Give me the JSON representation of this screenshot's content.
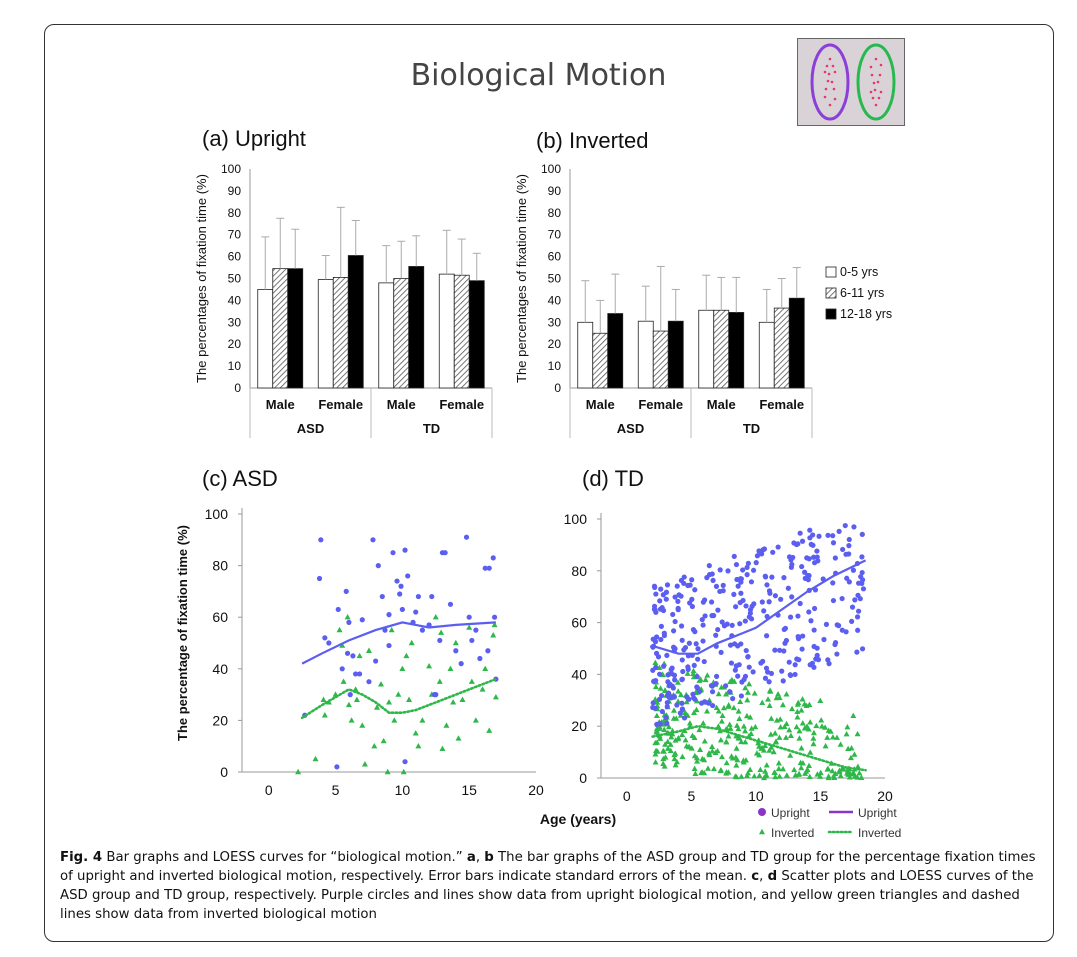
{
  "title": "Biological Motion",
  "panels": {
    "a": "(a) Upright",
    "b": "(b) Inverted",
    "c": "(c) ASD",
    "d": "(d) TD"
  },
  "legend": {
    "age_groups": [
      "0-5 yrs",
      "6-11 yrs",
      "12-18 yrs"
    ],
    "upright_points": "Upright",
    "upright_line": "Upright",
    "inverted_points": "Inverted",
    "inverted_line": "Inverted"
  },
  "colors": {
    "upright": "#5b5ef0",
    "inverted": "#2fb84a",
    "frame": "#333333"
  },
  "caption": {
    "fig_label": "Fig. 4",
    "text_1": " Bar graphs and LOESS curves for “biological motion.” ",
    "a": "a",
    "sep": ", ",
    "b": "b",
    "text_2": " The bar graphs of the ASD group and TD group for the percentage fixation times of upright and inverted biological motion, respectively. Error bars indicate standard errors of the mean. ",
    "c": "c",
    "d": "d",
    "text_3": " Scatter plots and LOESS curves of the ASD group and TD group, respectively. Purple circles and lines show data from upright biological motion, and yellow green triangles and dashed lines show data from inverted biological motion"
  },
  "chart_data": [
    {
      "type": "bar",
      "id": "a",
      "title": "(a) Upright",
      "ylabel": "The percentages of fixation time (%)",
      "ylim": [
        0,
        100
      ],
      "yticks": [
        0,
        10,
        20,
        30,
        40,
        50,
        60,
        70,
        80,
        90,
        100
      ],
      "groups": [
        "ASD",
        "TD"
      ],
      "categories": [
        "Male",
        "Female",
        "Male",
        "Female"
      ],
      "series": [
        {
          "name": "0-5 yrs",
          "values": [
            45,
            49.5,
            48,
            52
          ],
          "errors": [
            24,
            11,
            17,
            20
          ]
        },
        {
          "name": "6-11 yrs",
          "values": [
            54.5,
            50.5,
            50,
            51.5
          ],
          "errors": [
            23,
            32,
            17,
            16.5
          ]
        },
        {
          "name": "12-18 yrs",
          "values": [
            54.5,
            60.5,
            55.5,
            49
          ],
          "errors": [
            18,
            16,
            14,
            12.5
          ]
        }
      ]
    },
    {
      "type": "bar",
      "id": "b",
      "title": "(b) Inverted",
      "ylabel": "The percentages of fixation time (%)",
      "ylim": [
        0,
        100
      ],
      "yticks": [
        0,
        10,
        20,
        30,
        40,
        50,
        60,
        70,
        80,
        90,
        100
      ],
      "groups": [
        "ASD",
        "TD"
      ],
      "categories": [
        "Male",
        "Female",
        "Male",
        "Female"
      ],
      "series": [
        {
          "name": "0-5 yrs",
          "values": [
            30,
            30.5,
            35.5,
            30
          ],
          "errors": [
            19,
            16,
            16,
            15
          ]
        },
        {
          "name": "6-11 yrs",
          "values": [
            25,
            26,
            35.5,
            36.5
          ],
          "errors": [
            15,
            29.5,
            15,
            13.5
          ]
        },
        {
          "name": "12-18 yrs",
          "values": [
            34,
            30.5,
            34.5,
            41
          ],
          "errors": [
            18,
            14.5,
            16,
            14
          ]
        }
      ]
    },
    {
      "type": "scatter",
      "id": "c",
      "title": "(c) ASD",
      "ylabel": "The percentage of fixation time (%)",
      "xlim": [
        -2,
        20
      ],
      "ylim": [
        0,
        100
      ],
      "xticks": [
        0,
        5,
        10,
        15,
        20
      ],
      "yticks": [
        0,
        20,
        40,
        60,
        80,
        100
      ],
      "series": [
        {
          "name": "Upright",
          "marker": "circle",
          "points": [
            [
              3.9,
              90
            ],
            [
              3.8,
              75
            ],
            [
              4.2,
              52
            ],
            [
              4.5,
              50
            ],
            [
              5.2,
              63
            ],
            [
              5.8,
              70
            ],
            [
              6,
              58
            ],
            [
              6.3,
              45
            ],
            [
              5.5,
              40
            ],
            [
              6.5,
              38
            ],
            [
              5.9,
              46
            ],
            [
              6.1,
              30
            ],
            [
              7,
              59
            ],
            [
              7.8,
              90
            ],
            [
              8.2,
              80
            ],
            [
              8.5,
              68
            ],
            [
              8.7,
              55
            ],
            [
              9,
              61
            ],
            [
              9.3,
              85
            ],
            [
              9.6,
              74
            ],
            [
              9.8,
              69
            ],
            [
              10,
              63
            ],
            [
              10.2,
              86
            ],
            [
              10.4,
              76
            ],
            [
              10.8,
              58
            ],
            [
              11,
              62
            ],
            [
              11.5,
              55
            ],
            [
              12,
              57
            ],
            [
              12.4,
              30
            ],
            [
              12.8,
              51
            ],
            [
              13,
              85
            ],
            [
              13.2,
              85
            ],
            [
              13.6,
              65
            ],
            [
              14,
              47
            ],
            [
              14.4,
              42
            ],
            [
              14.8,
              91
            ],
            [
              15,
              60
            ],
            [
              15.5,
              55
            ],
            [
              15.8,
              44
            ],
            [
              16.2,
              79
            ],
            [
              16.5,
              79
            ],
            [
              16.8,
              83
            ],
            [
              17,
              36
            ],
            [
              16.4,
              47
            ],
            [
              12.5,
              30
            ],
            [
              7.5,
              35
            ],
            [
              6.8,
              38
            ],
            [
              8,
              43
            ],
            [
              9,
              49
            ],
            [
              9.9,
              72
            ],
            [
              2.7,
              22
            ],
            [
              5.1,
              2
            ],
            [
              10.2,
              4
            ],
            [
              11.2,
              68
            ],
            [
              12.2,
              68
            ],
            [
              15.2,
              51
            ],
            [
              16.9,
              60
            ]
          ]
        },
        {
          "name": "Inverted",
          "marker": "triangle",
          "points": [
            [
              2.2,
              0
            ],
            [
              3.5,
              5
            ],
            [
              4.1,
              28
            ],
            [
              4.5,
              27
            ],
            [
              4.2,
              22
            ],
            [
              5,
              30
            ],
            [
              5.3,
              55
            ],
            [
              5.5,
              49
            ],
            [
              5.6,
              35
            ],
            [
              5.9,
              60
            ],
            [
              6.2,
              20
            ],
            [
              6.5,
              32
            ],
            [
              6.6,
              28
            ],
            [
              6.8,
              45
            ],
            [
              7,
              18
            ],
            [
              7.5,
              47
            ],
            [
              7.9,
              10
            ],
            [
              8.1,
              25
            ],
            [
              8.4,
              34
            ],
            [
              8.6,
              12
            ],
            [
              8.9,
              0
            ],
            [
              9.2,
              55
            ],
            [
              9.4,
              20
            ],
            [
              9.7,
              30
            ],
            [
              10,
              40
            ],
            [
              10.3,
              45
            ],
            [
              10.5,
              28
            ],
            [
              10.7,
              50
            ],
            [
              11,
              15
            ],
            [
              11.2,
              10
            ],
            [
              11.5,
              20
            ],
            [
              12,
              41
            ],
            [
              12.2,
              30
            ],
            [
              12.5,
              60
            ],
            [
              12.8,
              35
            ],
            [
              13,
              9
            ],
            [
              13.3,
              18
            ],
            [
              13.6,
              40
            ],
            [
              13.8,
              27
            ],
            [
              14,
              50
            ],
            [
              14.5,
              28
            ],
            [
              15,
              56
            ],
            [
              15.2,
              35
            ],
            [
              15.5,
              20
            ],
            [
              16,
              32
            ],
            [
              16.2,
              40
            ],
            [
              16.5,
              16
            ],
            [
              16.8,
              53
            ],
            [
              17,
              29
            ],
            [
              16.9,
              57
            ],
            [
              7.2,
              3
            ],
            [
              10.1,
              0
            ],
            [
              6,
              26
            ],
            [
              9,
              27
            ],
            [
              12.9,
              54
            ],
            [
              14.2,
              13
            ]
          ]
        }
      ],
      "lines": [
        {
          "name": "Upright",
          "style": "solid",
          "points": [
            [
              2.5,
              42
            ],
            [
              4,
              46
            ],
            [
              6,
              51
            ],
            [
              8,
              55
            ],
            [
              10,
              58
            ],
            [
              11,
              57
            ],
            [
              12,
              56
            ],
            [
              14,
              57
            ],
            [
              17,
              58
            ]
          ]
        },
        {
          "name": "Inverted",
          "style": "dotted",
          "points": [
            [
              2.5,
              21
            ],
            [
              4,
              26
            ],
            [
              5,
              29
            ],
            [
              6,
              32
            ],
            [
              7,
              30
            ],
            [
              8,
              27
            ],
            [
              9,
              23
            ],
            [
              10,
              23
            ],
            [
              11,
              24
            ],
            [
              13,
              28
            ],
            [
              15,
              32
            ],
            [
              17,
              36
            ]
          ]
        }
      ]
    },
    {
      "type": "scatter",
      "id": "d",
      "title": "(d) TD",
      "xlabel": "Age (years)",
      "xlim": [
        -2,
        20
      ],
      "ylim": [
        0,
        100
      ],
      "xticks": [
        0,
        5,
        10,
        15,
        20
      ],
      "yticks": [
        0,
        20,
        40,
        60,
        80,
        100
      ],
      "series": [
        {
          "name": "Upright",
          "marker": "circle",
          "points": "dense cloud, ages 2–18, values mostly 30–98"
        },
        {
          "name": "Inverted",
          "marker": "triangle",
          "points": "dense cloud, ages 2–18, values mostly 0–45"
        }
      ],
      "lines": [
        {
          "name": "Upright",
          "style": "solid",
          "points": [
            [
              2,
              51
            ],
            [
              4,
              48
            ],
            [
              5.5,
              48
            ],
            [
              7,
              52
            ],
            [
              9,
              56
            ],
            [
              10,
              58
            ],
            [
              12,
              65
            ],
            [
              14,
              72
            ],
            [
              16,
              78
            ],
            [
              18.5,
              84
            ]
          ]
        },
        {
          "name": "Inverted",
          "style": "dotted",
          "points": [
            [
              2,
              16
            ],
            [
              4,
              18
            ],
            [
              5.5,
              20
            ],
            [
              7,
              19
            ],
            [
              9,
              16
            ],
            [
              11,
              13
            ],
            [
              13,
              10
            ],
            [
              15,
              7
            ],
            [
              17,
              4
            ],
            [
              18.5,
              3
            ]
          ]
        }
      ]
    }
  ]
}
